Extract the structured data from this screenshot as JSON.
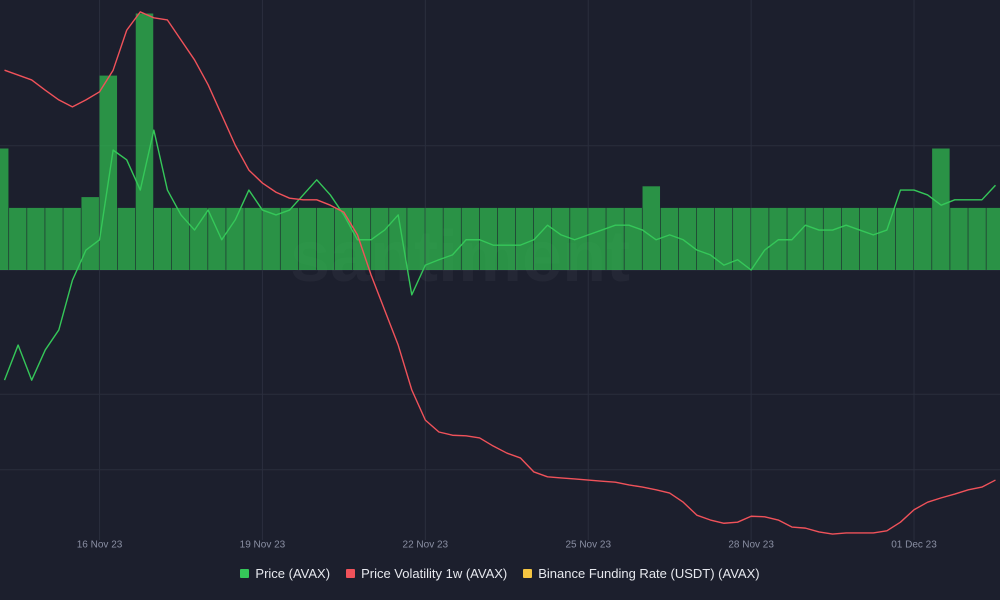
{
  "chart_data": {
    "type": "line",
    "watermark": "santiment",
    "x": [
      -42,
      -36,
      -30,
      -24,
      -18,
      -12,
      -6,
      0,
      6,
      12,
      18,
      24,
      30,
      36,
      42,
      48,
      54,
      60,
      66,
      72,
      78,
      84,
      90,
      96,
      102,
      108,
      114,
      120,
      126,
      132,
      138,
      144,
      150,
      156,
      162,
      168,
      174,
      180,
      186,
      192,
      198,
      204,
      210,
      216,
      222,
      228,
      234,
      240,
      246,
      252,
      258,
      264,
      270,
      276,
      282,
      288,
      294,
      300,
      306,
      312,
      318,
      324,
      330,
      336,
      342,
      348,
      354,
      360,
      366,
      372,
      378,
      384,
      390,
      396
    ],
    "xlim": [
      -44,
      398
    ],
    "xticks": [
      {
        "value": 0,
        "label": "16 Nov 23"
      },
      {
        "value": 72,
        "label": "19 Nov 23"
      },
      {
        "value": 144,
        "label": "22 Nov 23"
      },
      {
        "value": 216,
        "label": "25 Nov 23"
      },
      {
        "value": 288,
        "label": "28 Nov 23"
      },
      {
        "value": 360,
        "label": "01 Dec 23"
      }
    ],
    "ylim": [
      0,
      100
    ],
    "y2lim": [
      -100,
      100
    ],
    "grid": true,
    "grid_color": "#2a2e3d",
    "series": [
      {
        "name": "Price (AVAX)",
        "color": "#35c759",
        "values": [
          29.6,
          36.1,
          29.6,
          35.2,
          38.9,
          48.1,
          53.7,
          55.6,
          72.2,
          70.4,
          64.8,
          75.9,
          64.8,
          60.2,
          57.4,
          61.1,
          55.6,
          59.3,
          64.8,
          61.1,
          60.2,
          61.1,
          63.9,
          66.7,
          63.9,
          60.2,
          55.6,
          55.6,
          57.4,
          60.2,
          45.4,
          50.9,
          51.9,
          52.8,
          55.6,
          55.6,
          54.6,
          54.6,
          54.6,
          55.6,
          58.3,
          56.5,
          55.6,
          56.5,
          57.4,
          58.3,
          58.3,
          57.4,
          55.6,
          56.5,
          55.6,
          53.7,
          52.8,
          50.9,
          51.9,
          50,
          53.7,
          55.6,
          55.6,
          58.3,
          57.4,
          57.4,
          58.3,
          57.4,
          56.5,
          57.4,
          64.8,
          64.8,
          63.9,
          62,
          63,
          63,
          63,
          65.7
        ]
      },
      {
        "name": "Price Volatility 1w (AVAX)",
        "color": "#f0525a",
        "values": [
          87,
          86.1,
          85.2,
          83.3,
          81.5,
          80.2,
          81.5,
          83,
          87,
          94.4,
          97.8,
          96.7,
          96.3,
          92.6,
          88.9,
          84.3,
          78.7,
          73.1,
          68.5,
          66.1,
          64.4,
          63.3,
          63,
          63,
          62,
          60.7,
          56.5,
          49.1,
          42.6,
          36.1,
          27.8,
          22.2,
          20,
          19.4,
          19.3,
          18.9,
          17.4,
          16.1,
          15.2,
          12.6,
          11.7,
          11.5,
          11.3,
          11.1,
          10.9,
          10.7,
          10.2,
          9.8,
          9.3,
          8.7,
          7,
          4.6,
          3.7,
          3.1,
          3.3,
          4.4,
          4.3,
          3.7,
          2.4,
          2.2,
          1.5,
          1.1,
          1.3,
          1.3,
          1.3,
          1.7,
          3.3,
          5.6,
          7,
          7.8,
          8.5,
          9.3,
          9.8,
          11.1
        ]
      },
      {
        "name": "Binance Funding Rate (USDT) (AVAX)",
        "color": "#f5c542",
        "bar_color": "#2fb94f",
        "axis": "y2",
        "kind": "bar",
        "x": [
          -48,
          -40,
          -32,
          -24,
          -16,
          -8,
          0,
          8,
          16,
          24,
          32,
          40,
          48,
          56,
          64,
          72,
          80,
          88,
          96,
          104,
          112,
          120,
          128,
          136,
          144,
          152,
          160,
          168,
          176,
          184,
          192,
          200,
          208,
          216,
          224,
          232,
          240,
          248,
          256,
          264,
          272,
          280,
          288,
          296,
          304,
          312,
          320,
          328,
          336,
          344,
          352,
          360,
          368,
          376,
          384,
          392
        ],
        "values": [
          45,
          23,
          23,
          23,
          23,
          27,
          72,
          23,
          95,
          23,
          23,
          23,
          23,
          23,
          23,
          23,
          23,
          23,
          23,
          23,
          23,
          23,
          23,
          23,
          23,
          23,
          23,
          23,
          23,
          23,
          23,
          23,
          23,
          23,
          23,
          23,
          31,
          23,
          23,
          23,
          23,
          23,
          23,
          23,
          23,
          23,
          23,
          23,
          23,
          23,
          23,
          23,
          45,
          23,
          23,
          23
        ]
      }
    ]
  }
}
